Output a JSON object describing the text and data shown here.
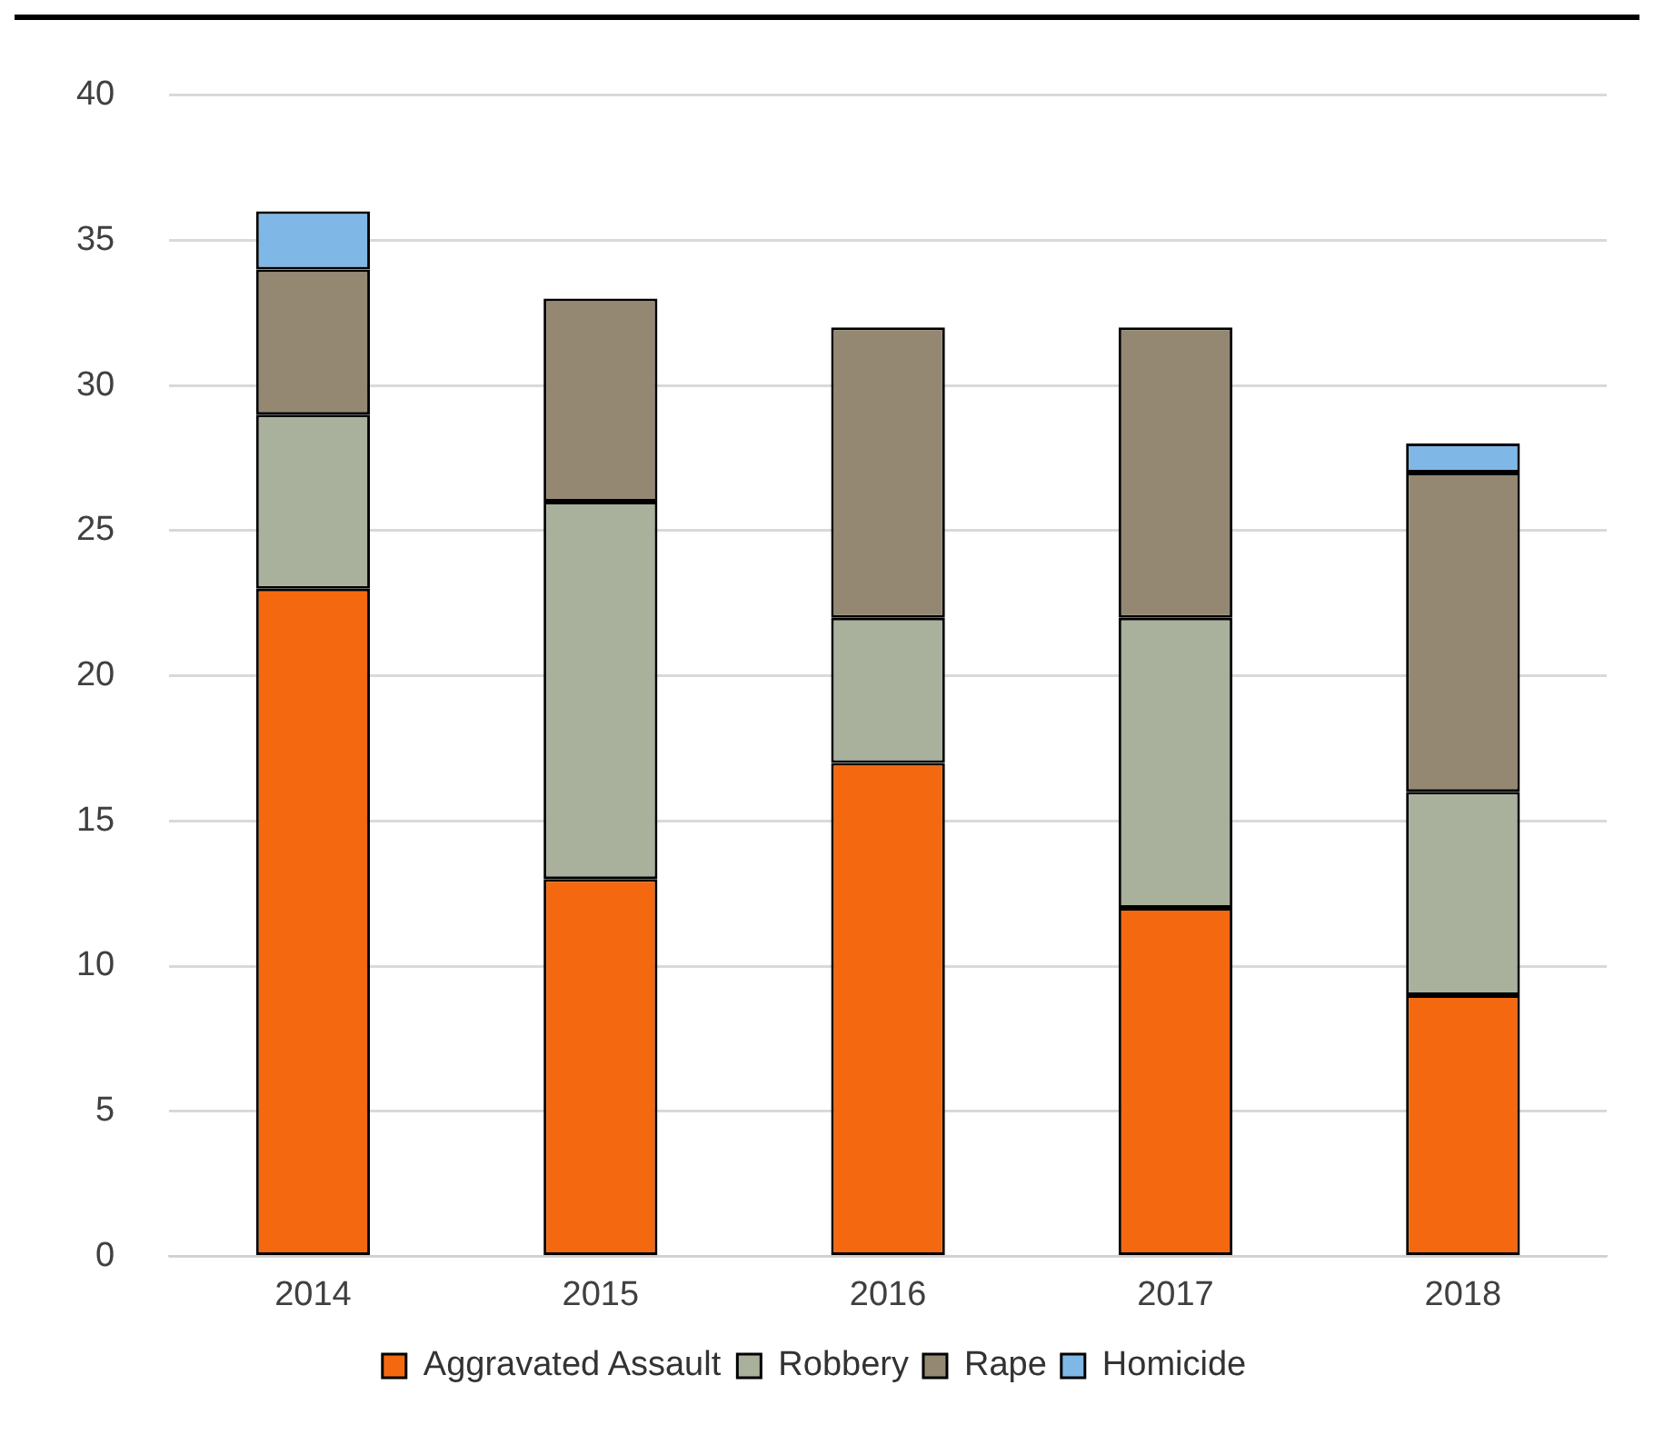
{
  "chart_data": {
    "type": "bar",
    "stacked": true,
    "categories": [
      "2014",
      "2015",
      "2016",
      "2017",
      "2018"
    ],
    "series": [
      {
        "name": "Aggravated Assault",
        "color": "#f4690f",
        "values": [
          23,
          13,
          17,
          12,
          9
        ]
      },
      {
        "name": "Robbery",
        "color": "#a9b09c",
        "values": [
          6,
          13,
          5,
          10,
          7
        ]
      },
      {
        "name": "Rape",
        "color": "#958873",
        "values": [
          5,
          7,
          10,
          10,
          11
        ]
      },
      {
        "name": "Homicide",
        "color": "#7fb8e6",
        "values": [
          2,
          null,
          null,
          null,
          1
        ]
      }
    ],
    "ylim": [
      0,
      40
    ],
    "yticks": [
      0,
      5,
      10,
      15,
      20,
      25,
      30,
      35,
      40
    ],
    "grid": "y",
    "legend": "bottom"
  }
}
